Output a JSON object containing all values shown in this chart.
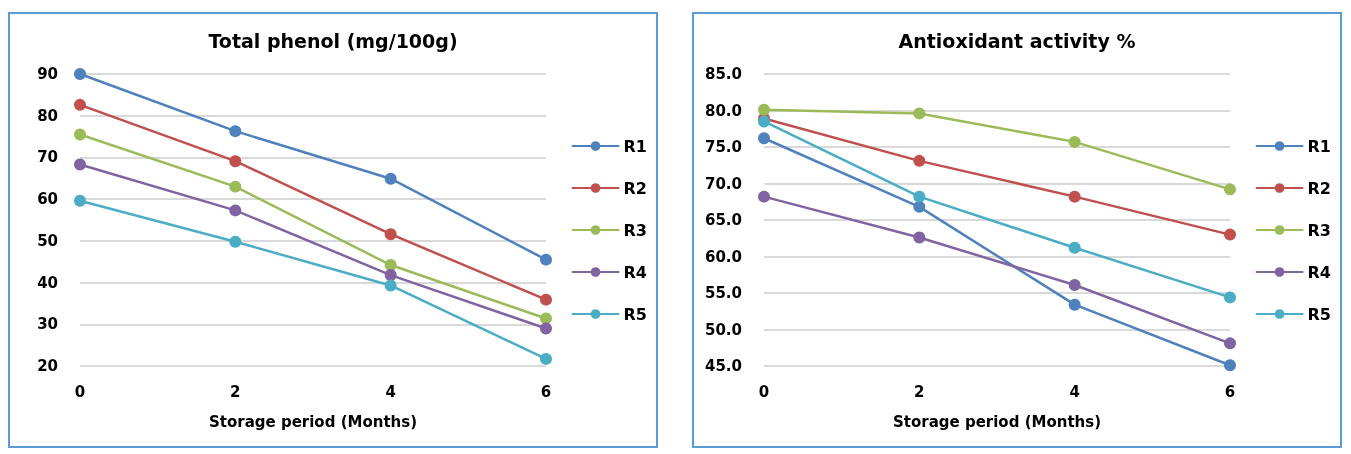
{
  "chart_data": [
    {
      "type": "line",
      "title": "Total phenol (mg/100g)",
      "xlabel": "Storage period (Months)",
      "categories": [
        "0",
        "2",
        "4",
        "6"
      ],
      "ylim": [
        20,
        90
      ],
      "yticks": [
        20,
        30,
        40,
        50,
        60,
        70,
        80,
        90
      ],
      "grid": "y",
      "legend": "right",
      "marker": "circle",
      "series": [
        {
          "name": "R1",
          "color": "#4f81bd",
          "values": [
            90,
            76.3,
            64.9,
            45.5
          ]
        },
        {
          "name": "R2",
          "color": "#c0504d",
          "values": [
            82.6,
            69.1,
            51.6,
            35.9
          ]
        },
        {
          "name": "R3",
          "color": "#9bbb59",
          "values": [
            75.5,
            63,
            44.2,
            31.4
          ]
        },
        {
          "name": "R4",
          "color": "#8064a2",
          "values": [
            68.3,
            57.3,
            41.8,
            29
          ]
        },
        {
          "name": "R5",
          "color": "#4bacc6",
          "values": [
            59.6,
            49.8,
            39.3,
            21.7
          ]
        }
      ]
    },
    {
      "type": "line",
      "title": "Antioxidant activity %",
      "xlabel": "Storage period (Months)",
      "categories": [
        "0",
        "2",
        "4",
        "6"
      ],
      "ylim": [
        45,
        85
      ],
      "yticks": [
        {
          "value": 45,
          "label": "45.0"
        },
        {
          "value": 50,
          "label": "50.0"
        },
        {
          "value": 55,
          "label": "55.0"
        },
        {
          "value": 60,
          "label": "60.0"
        },
        {
          "value": 65,
          "label": "65.0"
        },
        {
          "value": 70,
          "label": "70.0"
        },
        {
          "value": 75,
          "label": "75.0"
        },
        {
          "value": 80,
          "label": "80.0"
        },
        {
          "value": 85,
          "label": "85.0"
        }
      ],
      "grid": "y",
      "legend": "right",
      "marker": "circle",
      "series": [
        {
          "name": "R1",
          "color": "#4f81bd",
          "values": [
            76.2,
            66.8,
            53.4,
            45.1
          ]
        },
        {
          "name": "R2",
          "color": "#c0504d",
          "values": [
            78.9,
            73.1,
            68.2,
            63.0
          ]
        },
        {
          "name": "R3",
          "color": "#9bbb59",
          "values": [
            80.1,
            79.6,
            75.7,
            69.2
          ]
        },
        {
          "name": "R4",
          "color": "#8064a2",
          "values": [
            68.2,
            62.6,
            56.1,
            48.1
          ]
        },
        {
          "name": "R5",
          "color": "#4bacc6",
          "values": [
            78.5,
            68.2,
            61.2,
            54.4
          ]
        }
      ]
    }
  ]
}
